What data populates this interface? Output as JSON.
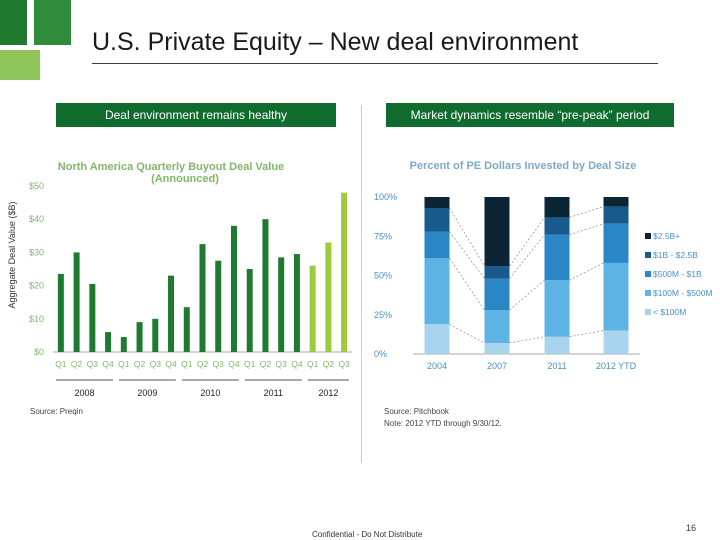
{
  "page": {
    "title": "U.S. Private Equity – New deal environment",
    "footer": "Confidential - Do Not Distribute",
    "page_number": "16",
    "colors": {
      "dark_green": "#1f7a30",
      "mid_green": "#2f8c3a",
      "light_green": "#8fc45a",
      "banner": "#0f6b2e"
    }
  },
  "left_panel": {
    "banner": "Deal environment remains healthy",
    "y_axis_label": "Aggregate Deal Value ($B)",
    "source": "Source: Preqin"
  },
  "right_panel": {
    "banner": "Market dynamics resemble “pre-peak” period",
    "source": "Source: Pitchbook",
    "note": "Note: 2012 YTD through 9/30/12."
  },
  "chart_data": [
    {
      "type": "bar",
      "title": "North America Quarterly Buyout Deal Value",
      "subtitle": "(Announced)",
      "xlabel": "",
      "ylabel": "Aggregate Deal Value ($B)",
      "ylim": [
        0,
        50
      ],
      "yticks": [
        0,
        10,
        20,
        30,
        40,
        50
      ],
      "ytick_labels": [
        "$0",
        "$10",
        "$20",
        "$30",
        "$40",
        "$50"
      ],
      "categories": [
        "Q1",
        "Q2",
        "Q3",
        "Q4",
        "Q1",
        "Q2",
        "Q3",
        "Q4",
        "Q1",
        "Q2",
        "Q3",
        "Q4",
        "Q1",
        "Q2",
        "Q3",
        "Q4",
        "Q1",
        "Q2",
        "Q3"
      ],
      "groups": [
        "2008",
        "2009",
        "2010",
        "2011",
        "2012"
      ],
      "group_index": [
        0,
        0,
        0,
        0,
        1,
        1,
        1,
        1,
        2,
        2,
        2,
        2,
        3,
        3,
        3,
        3,
        4,
        4,
        4
      ],
      "values": [
        23.5,
        30,
        20.5,
        6,
        4.5,
        9,
        10,
        23,
        13.5,
        32.5,
        27.5,
        38,
        25,
        40,
        28.5,
        29.5,
        26,
        33,
        48
      ],
      "bar_colors": [
        "#1f7a30",
        "#1f7a30",
        "#1f7a30",
        "#1f7a30",
        "#1f7a30",
        "#1f7a30",
        "#1f7a30",
        "#1f7a30",
        "#1f7a30",
        "#1f7a30",
        "#1f7a30",
        "#1f7a30",
        "#1f7a30",
        "#1f7a30",
        "#1f7a30",
        "#1f7a30",
        "#9ccc3c",
        "#9ccc3c",
        "#9ccc3c"
      ]
    },
    {
      "type": "bar",
      "stacked": true,
      "title": "Percent of PE Dollars Invested by Deal Size",
      "xlabel": "",
      "ylabel": "",
      "ylim": [
        0,
        100
      ],
      "yticks": [
        0,
        25,
        50,
        75,
        100
      ],
      "ytick_labels": [
        "0%",
        "25%",
        "50%",
        "75%",
        "100%"
      ],
      "legend_position": "right",
      "categories": [
        "2004",
        "2007",
        "2011",
        "2012 YTD"
      ],
      "series": [
        {
          "name": "< $100M",
          "color": "#a9d4ee",
          "values": [
            19,
            7,
            11,
            15
          ]
        },
        {
          "name": "$100M - $500M",
          "color": "#5db3e3",
          "values": [
            42,
            21,
            36,
            43
          ]
        },
        {
          "name": "$500M - $1B",
          "color": "#2a86c4",
          "values": [
            17,
            20,
            29,
            25
          ]
        },
        {
          "name": "$1B - $2.5B",
          "color": "#195a8c",
          "values": [
            15,
            8,
            11,
            11
          ]
        },
        {
          "name": "$2.5B+",
          "color": "#0c2535",
          "values": [
            7,
            44,
            13,
            6
          ]
        }
      ]
    }
  ]
}
